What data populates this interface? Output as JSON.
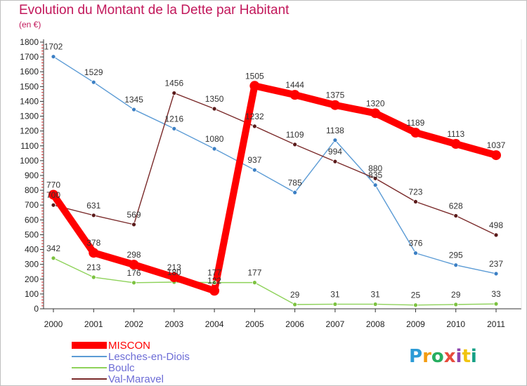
{
  "title": "Evolution du Montant de la Dette par Habitant",
  "subtitle": "(en €)",
  "logo_text": "Proxiti",
  "chart_data": {
    "type": "line",
    "title": "Evolution du Montant de la Dette par Habitant",
    "subtitle": "(en €)",
    "xlabel": "",
    "ylabel": "",
    "categories": [
      "2000",
      "2001",
      "2002",
      "2003",
      "2004",
      "2005",
      "2006",
      "2007",
      "2008",
      "2009",
      "2010",
      "2011"
    ],
    "ylim": [
      0,
      1800
    ],
    "yticks": [
      0,
      100,
      200,
      300,
      400,
      500,
      600,
      700,
      800,
      900,
      1000,
      1100,
      1200,
      1300,
      1400,
      1500,
      1600,
      1700,
      1800
    ],
    "grid": false,
    "legend_position": "bottom-left",
    "series": [
      {
        "name": "MISCON",
        "color": "#ff0000",
        "values": [
          770,
          378,
          298,
          213,
          122,
          1505,
          1444,
          1375,
          1320,
          1189,
          1113,
          1037
        ]
      },
      {
        "name": "Lesches-en-Diois",
        "color": "#5b9bd5",
        "values": [
          1702,
          1529,
          1345,
          1216,
          1080,
          937,
          785,
          1138,
          835,
          376,
          295,
          237
        ]
      },
      {
        "name": "Boulc",
        "color": "#8ed25a",
        "values": [
          342,
          213,
          176,
          180,
          177,
          177,
          29,
          31,
          31,
          25,
          29,
          33
        ]
      },
      {
        "name": "Val-Maravel",
        "color": "#7a2a2a",
        "values": [
          700,
          631,
          569,
          1456,
          1350,
          1232,
          1109,
          994,
          880,
          723,
          628,
          498
        ]
      }
    ]
  }
}
